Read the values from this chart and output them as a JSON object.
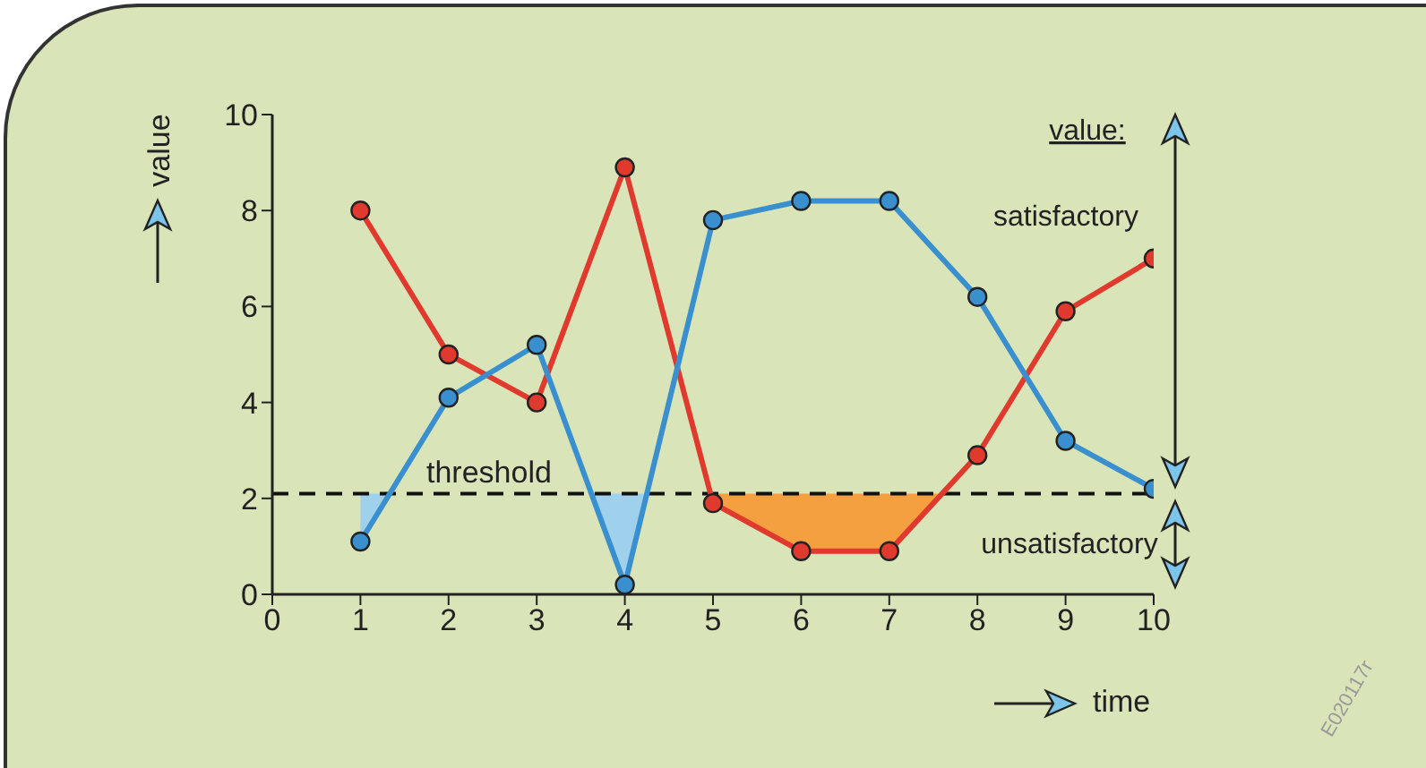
{
  "chart_data": {
    "type": "line",
    "xlabel": "time",
    "ylabel": "value",
    "x": [
      1,
      2,
      3,
      4,
      5,
      6,
      7,
      8,
      9,
      10
    ],
    "series": [
      {
        "color": "#e03a2e",
        "values": [
          8,
          5,
          4,
          8.9,
          1.9,
          0.9,
          0.9,
          2.9,
          5.9,
          7
        ],
        "lower": [
          2.1,
          2.1,
          2.1,
          2.1,
          1.9,
          0.9,
          0.9,
          2.1,
          2.1,
          2.1
        ],
        "upper": [
          2.1,
          2.1,
          2.1,
          2.1,
          2.1,
          2.1,
          2.1,
          2.1,
          2.1,
          2.1
        ]
      },
      {
        "color": "#3a90cf",
        "values": [
          1.1,
          4.1,
          5.2,
          0.2,
          7.8,
          8.2,
          8.2,
          6.2,
          3.2,
          2.2
        ],
        "lower": [
          1.1,
          2.1,
          2.1,
          0.2,
          2.1,
          2.1,
          2.1,
          2.1,
          2.1,
          2.1
        ],
        "upper": [
          2.1,
          2.1,
          2.1,
          2.1,
          2.1,
          2.1,
          2.1,
          2.1,
          2.1,
          2.1
        ]
      }
    ],
    "xlim": [
      0,
      10
    ],
    "xticks": [
      0,
      1,
      2,
      3,
      4,
      5,
      6,
      7,
      8,
      9,
      10
    ],
    "ylim": [
      0,
      10
    ],
    "yticks": [
      0,
      2,
      4,
      6,
      8,
      10
    ],
    "ref_lines": [
      {
        "axis": "y",
        "value": 2.1,
        "label": "threshold",
        "line_style": "dashed",
        "color": "#111111"
      }
    ],
    "annotations": [
      "value:",
      "satisfactory",
      "unsatisfactory",
      "E020117r"
    ],
    "marker": "circle"
  }
}
